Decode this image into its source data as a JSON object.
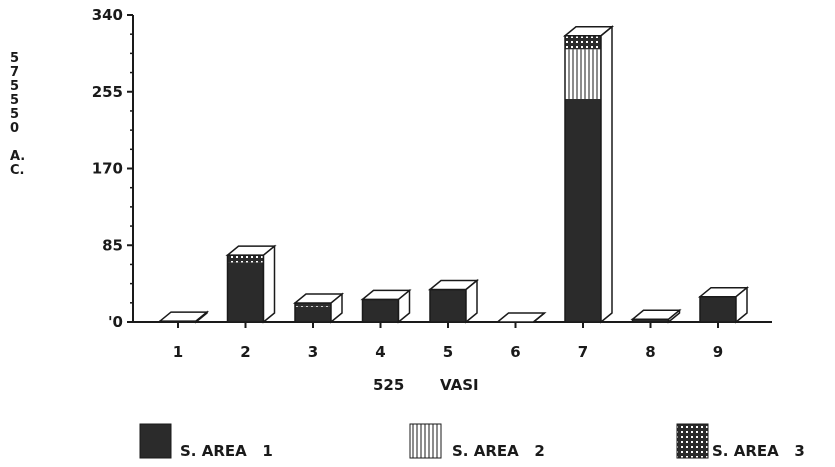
{
  "chart_data": {
    "type": "bar",
    "stacked": true,
    "bar_style": "3d",
    "categories": [
      "1",
      "2",
      "3",
      "4",
      "5",
      "6",
      "7",
      "8",
      "9"
    ],
    "series": [
      {
        "name": "S. AREA   1",
        "values": [
          0,
          66,
          17,
          25,
          36,
          0,
          247,
          3,
          28
        ],
        "pattern": "solid"
      },
      {
        "name": "S. AREA   2",
        "values": [
          1,
          0,
          0,
          0,
          0,
          0,
          55,
          0,
          0
        ],
        "pattern": "vertical-lines"
      },
      {
        "name": "S. AREA   3",
        "values": [
          0,
          8,
          4,
          0,
          0,
          0,
          15,
          0,
          0
        ],
        "pattern": "dots"
      }
    ],
    "ylim": [
      0,
      340
    ],
    "yticks": [
      "'0",
      "85",
      "170",
      "255",
      "340"
    ],
    "ylabel_lines": [
      "5",
      "7",
      "5",
      "5",
      "5",
      "0",
      "",
      "A.",
      "C."
    ],
    "xlabel_left": "525",
    "xlabel_right": "VASI",
    "legend_position": "bottom",
    "colors": {
      "ink": "#1a1a1a",
      "background": "#ffffff",
      "solid_fill": "#2b2b2b"
    }
  }
}
